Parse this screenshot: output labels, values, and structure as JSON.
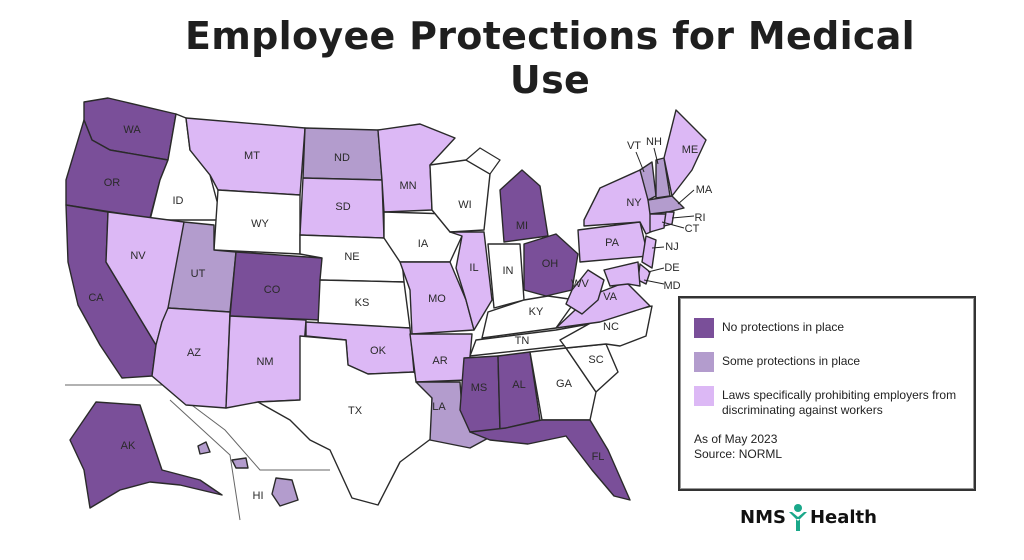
{
  "title": "Employee Protections for Medical Use",
  "colors": {
    "none": "#7a4f99",
    "some": "#b39ccd",
    "laws": "#dcb8f5",
    "neutral": "#ffffff",
    "brand_icon": "#1aa88a"
  },
  "legend": {
    "items": [
      {
        "key": "none",
        "label": "No protections in place"
      },
      {
        "key": "some",
        "label": "Some protections in place"
      },
      {
        "key": "laws",
        "label": "Laws specifically prohibiting employers from discriminating against workers"
      }
    ],
    "as_of": "As of May 2023",
    "source": "Source: NORML"
  },
  "brand": {
    "left": "NMS",
    "right": "Health"
  },
  "states": [
    {
      "abbr": "WA",
      "status": "none"
    },
    {
      "abbr": "OR",
      "status": "none"
    },
    {
      "abbr": "CA",
      "status": "none"
    },
    {
      "abbr": "ID",
      "status": "neutral"
    },
    {
      "abbr": "NV",
      "status": "laws"
    },
    {
      "abbr": "MT",
      "status": "laws"
    },
    {
      "abbr": "WY",
      "status": "neutral"
    },
    {
      "abbr": "UT",
      "status": "some"
    },
    {
      "abbr": "AZ",
      "status": "laws"
    },
    {
      "abbr": "CO",
      "status": "none"
    },
    {
      "abbr": "NM",
      "status": "laws"
    },
    {
      "abbr": "ND",
      "status": "some"
    },
    {
      "abbr": "SD",
      "status": "laws"
    },
    {
      "abbr": "NE",
      "status": "neutral"
    },
    {
      "abbr": "KS",
      "status": "neutral"
    },
    {
      "abbr": "OK",
      "status": "laws"
    },
    {
      "abbr": "TX",
      "status": "neutral"
    },
    {
      "abbr": "MN",
      "status": "laws"
    },
    {
      "abbr": "IA",
      "status": "neutral"
    },
    {
      "abbr": "MO",
      "status": "laws"
    },
    {
      "abbr": "AR",
      "status": "laws"
    },
    {
      "abbr": "LA",
      "status": "some"
    },
    {
      "abbr": "WI",
      "status": "neutral"
    },
    {
      "abbr": "IL",
      "status": "laws"
    },
    {
      "abbr": "MI",
      "status": "none"
    },
    {
      "abbr": "IN",
      "status": "neutral"
    },
    {
      "abbr": "OH",
      "status": "none"
    },
    {
      "abbr": "KY",
      "status": "neutral"
    },
    {
      "abbr": "TN",
      "status": "neutral"
    },
    {
      "abbr": "MS",
      "status": "none"
    },
    {
      "abbr": "AL",
      "status": "none"
    },
    {
      "abbr": "GA",
      "status": "neutral"
    },
    {
      "abbr": "FL",
      "status": "none"
    },
    {
      "abbr": "SC",
      "status": "neutral"
    },
    {
      "abbr": "NC",
      "status": "neutral"
    },
    {
      "abbr": "VA",
      "status": "laws"
    },
    {
      "abbr": "WV",
      "status": "laws"
    },
    {
      "abbr": "PA",
      "status": "laws"
    },
    {
      "abbr": "NY",
      "status": "laws"
    },
    {
      "abbr": "VT",
      "status": "some"
    },
    {
      "abbr": "NH",
      "status": "some"
    },
    {
      "abbr": "ME",
      "status": "laws"
    },
    {
      "abbr": "MA",
      "status": "some"
    },
    {
      "abbr": "RI",
      "status": "laws"
    },
    {
      "abbr": "CT",
      "status": "laws"
    },
    {
      "abbr": "NJ",
      "status": "laws"
    },
    {
      "abbr": "DE",
      "status": "laws"
    },
    {
      "abbr": "MD",
      "status": "laws"
    },
    {
      "abbr": "AK",
      "status": "none"
    },
    {
      "abbr": "HI",
      "status": "some"
    }
  ]
}
